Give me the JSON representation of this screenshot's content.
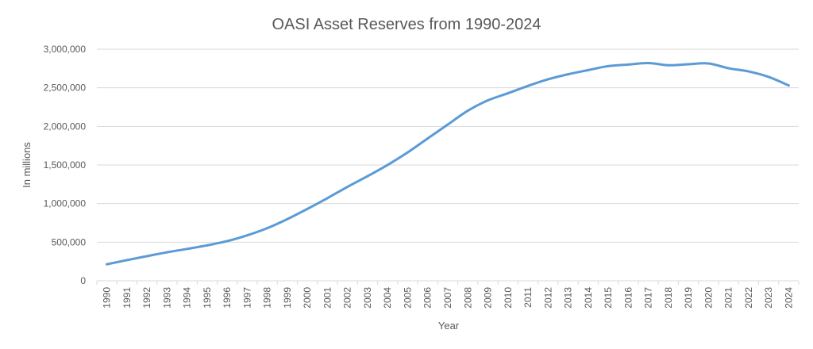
{
  "chart_data": {
    "type": "line",
    "title": "OASI Asset Reserves from 1990-2024",
    "xlabel": "Year",
    "ylabel": "In millions",
    "ylim": [
      0,
      3000000
    ],
    "yticks": [
      0,
      500000,
      1000000,
      1500000,
      2000000,
      2500000,
      3000000
    ],
    "ytick_labels": [
      "0",
      "500,000",
      "1,000,000",
      "1,500,000",
      "2,000,000",
      "2,500,000",
      "3,000,000"
    ],
    "grid": true,
    "legend": "none",
    "categories": [
      "1990",
      "1991",
      "1992",
      "1993",
      "1994",
      "1995",
      "1996",
      "1997",
      "1998",
      "1999",
      "2000",
      "2001",
      "2002",
      "2003",
      "2004",
      "2005",
      "2006",
      "2007",
      "2008",
      "2009",
      "2010",
      "2011",
      "2012",
      "2013",
      "2014",
      "2015",
      "2016",
      "2017",
      "2018",
      "2019",
      "2020",
      "2021",
      "2022",
      "2023",
      "2024"
    ],
    "series": [
      {
        "color": "#5b9bd5",
        "values": [
          214000,
          268000,
          319000,
          369000,
          413000,
          459000,
          514000,
          589000,
          682000,
          799000,
          931000,
          1071000,
          1217000,
          1355000,
          1501000,
          1663000,
          1844000,
          2024000,
          2203000,
          2337000,
          2429000,
          2524000,
          2610000,
          2675000,
          2729000,
          2780000,
          2801000,
          2820000,
          2792000,
          2805000,
          2815000,
          2753000,
          2712000,
          2641000,
          2530000
        ]
      }
    ]
  }
}
